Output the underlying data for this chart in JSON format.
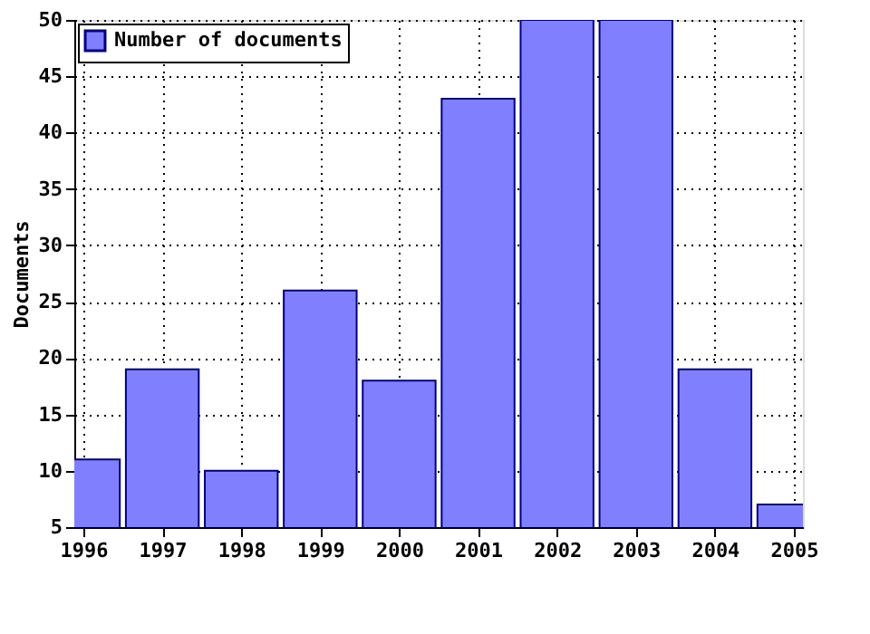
{
  "chart_data": {
    "type": "bar",
    "ylabel": "Documents",
    "x": [
      1996,
      1997,
      1998,
      1999,
      2000,
      2001,
      2002,
      2003,
      2004,
      2005
    ],
    "series": [
      {
        "name": "Number of documents",
        "color": "#8080ff",
        "values": [
          11,
          19,
          10,
          26,
          18,
          43,
          50,
          50,
          19,
          7
        ]
      }
    ],
    "xlim": [
      1996,
      2005
    ],
    "xticks": [
      1996,
      1997,
      1998,
      1999,
      2000,
      2001,
      2002,
      2003,
      2004,
      2005
    ],
    "ylim": [
      5,
      50
    ],
    "yticks": [
      5,
      10,
      15,
      20,
      25,
      30,
      35,
      40,
      45,
      50
    ],
    "grid": true,
    "legend": "top left"
  }
}
